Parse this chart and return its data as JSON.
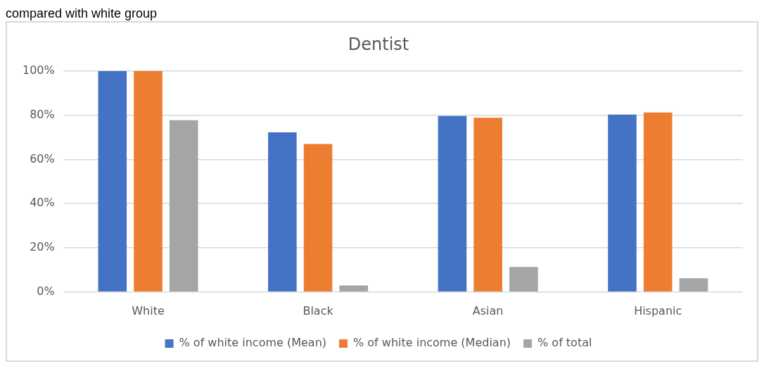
{
  "chart_data": {
    "type": "bar",
    "title": "Dentist",
    "annotations": [
      "compared with white group"
    ],
    "categories": [
      "White",
      "Black",
      "Asian",
      "Hispanic"
    ],
    "series": [
      {
        "name": "% of white income (Mean)",
        "color": "#4472c4",
        "values": [
          100,
          72.2,
          79.6,
          80.3
        ]
      },
      {
        "name": "% of white income (Median)",
        "color": "#ed7d31",
        "values": [
          100,
          67,
          78.8,
          81.2
        ]
      },
      {
        "name": "% of total",
        "color": "#a5a5a5",
        "values": [
          77.7,
          3,
          11.3,
          6.2
        ]
      }
    ],
    "ylim": [
      0,
      100
    ],
    "yticks": [
      {
        "value": 0,
        "label": "0%"
      },
      {
        "value": 20,
        "label": "20%"
      },
      {
        "value": 40,
        "label": "40%"
      },
      {
        "value": 60,
        "label": "60%"
      },
      {
        "value": 80,
        "label": "80%"
      },
      {
        "value": 100,
        "label": "100%"
      }
    ],
    "grid": "y",
    "legend": "bottom"
  }
}
